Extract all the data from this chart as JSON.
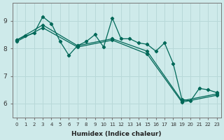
{
  "xlabel": "Humidex (Indice chaleur)",
  "bg_color": "#ceeaea",
  "grid_color": "#b8d8d8",
  "line_color": "#006858",
  "xlim": [
    -0.5,
    23.5
  ],
  "ylim": [
    5.5,
    9.65
  ],
  "yticks": [
    6,
    7,
    8,
    9
  ],
  "xticks": [
    0,
    1,
    2,
    3,
    4,
    5,
    6,
    7,
    8,
    9,
    10,
    11,
    12,
    13,
    14,
    15,
    16,
    17,
    18,
    19,
    20,
    21,
    22,
    23
  ],
  "line1_x": [
    0,
    1,
    2,
    3,
    4,
    5,
    6,
    7,
    8,
    9,
    10,
    11,
    12,
    13,
    14,
    15,
    16,
    17,
    18,
    19,
    20,
    21,
    22,
    23
  ],
  "line1_y": [
    8.3,
    8.45,
    8.55,
    9.15,
    8.9,
    8.25,
    7.75,
    8.1,
    8.25,
    8.5,
    8.05,
    9.1,
    8.35,
    8.35,
    8.2,
    8.15,
    7.9,
    8.2,
    7.45,
    6.15,
    6.1,
    6.55,
    6.5,
    6.4
  ],
  "line2_x": [
    0,
    3,
    7,
    11,
    15,
    19,
    23
  ],
  "line2_y": [
    8.3,
    8.85,
    8.1,
    8.35,
    7.9,
    6.1,
    6.35
  ],
  "line3_x": [
    0,
    3,
    7,
    11,
    15,
    19,
    23
  ],
  "line3_y": [
    8.25,
    8.75,
    8.05,
    8.3,
    7.8,
    6.05,
    6.3
  ]
}
